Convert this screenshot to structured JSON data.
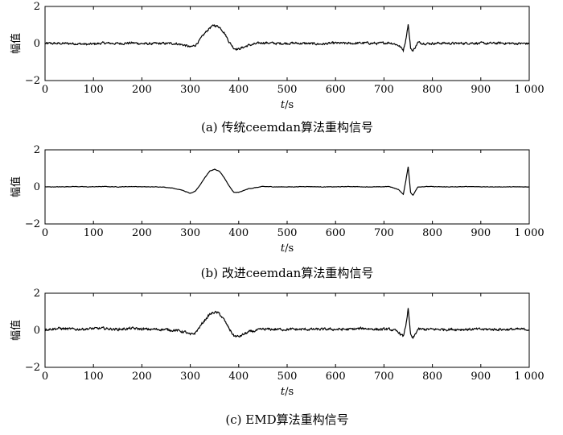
{
  "figure": {
    "x_ticks": [
      "0",
      "100",
      "200",
      "300",
      "400",
      "500",
      "600",
      "700",
      "800",
      "900",
      "1 000"
    ],
    "y_ticks": [
      "2",
      "0",
      "−2"
    ]
  },
  "chart_data": [
    {
      "type": "line",
      "caption": "(a) 传统ceemdan算法重构信号",
      "xlabel_italic": "t",
      "xlabel_unit": "/s",
      "ylabel": "幅值",
      "xlim": [
        0,
        1000
      ],
      "ylim": [
        -2,
        2
      ],
      "grid": false,
      "noise_level": 0.06,
      "series": [
        {
          "x": [
            0,
            30,
            60,
            90,
            120,
            150,
            180,
            210,
            240,
            270,
            290,
            300,
            310,
            320,
            330,
            340,
            350,
            360,
            370,
            380,
            390,
            400,
            420,
            450,
            480,
            510,
            540,
            570,
            600,
            630,
            660,
            690,
            710,
            720,
            730,
            740,
            745,
            750,
            755,
            760,
            770,
            790,
            820,
            850,
            880,
            910,
            940,
            970,
            1000
          ],
          "y": [
            0,
            0,
            0,
            -0.05,
            0.02,
            0,
            0.03,
            -0.02,
            0,
            0,
            -0.1,
            -0.2,
            -0.1,
            0.2,
            0.55,
            0.85,
            0.98,
            0.9,
            0.6,
            0.1,
            -0.25,
            -0.3,
            -0.1,
            0.05,
            0,
            0.02,
            0,
            -0.03,
            0.02,
            0,
            0.03,
            0,
            0.05,
            0,
            -0.1,
            -0.35,
            0.2,
            1.05,
            -0.25,
            -0.4,
            0.05,
            0,
            0.02,
            0,
            0.03,
            0,
            0.02,
            0,
            0
          ]
        }
      ]
    },
    {
      "type": "line",
      "caption": "(b) 改进ceemdan算法重构信号",
      "xlabel_italic": "t",
      "xlabel_unit": "/s",
      "ylabel": "幅值",
      "xlim": [
        0,
        1000
      ],
      "ylim": [
        -2,
        2
      ],
      "grid": false,
      "noise_level": 0.012,
      "series": [
        {
          "x": [
            0,
            30,
            60,
            90,
            120,
            150,
            180,
            210,
            240,
            260,
            280,
            300,
            310,
            320,
            330,
            340,
            350,
            360,
            370,
            380,
            390,
            400,
            420,
            450,
            480,
            510,
            540,
            570,
            600,
            630,
            660,
            690,
            710,
            720,
            730,
            740,
            745,
            750,
            755,
            760,
            770,
            790,
            820,
            850,
            880,
            910,
            940,
            970,
            1000
          ],
          "y": [
            0,
            0,
            0.02,
            0,
            0.02,
            0,
            0.02,
            0,
            0,
            -0.05,
            -0.15,
            -0.35,
            -0.25,
            0.1,
            0.5,
            0.85,
            0.95,
            0.85,
            0.5,
            0.05,
            -0.3,
            -0.3,
            -0.1,
            0.02,
            0,
            0,
            0.02,
            0,
            0,
            0.02,
            0,
            0,
            0.02,
            -0.05,
            -0.15,
            -0.4,
            0.3,
            1.1,
            -0.3,
            -0.45,
            0,
            0.02,
            0,
            0,
            0.02,
            0,
            0,
            0,
            0
          ]
        }
      ]
    },
    {
      "type": "line",
      "caption": "(c) EMD算法重构信号",
      "xlabel_italic": "t",
      "xlabel_unit": "/s",
      "ylabel": "幅值",
      "xlim": [
        0,
        1000
      ],
      "ylim": [
        -2,
        2
      ],
      "grid": false,
      "noise_level": 0.065,
      "series": [
        {
          "x": [
            0,
            30,
            60,
            90,
            120,
            150,
            180,
            210,
            240,
            270,
            290,
            300,
            310,
            320,
            330,
            340,
            350,
            360,
            370,
            380,
            390,
            400,
            420,
            450,
            480,
            510,
            540,
            570,
            600,
            630,
            660,
            690,
            710,
            720,
            730,
            740,
            745,
            750,
            755,
            760,
            770,
            790,
            820,
            850,
            880,
            910,
            940,
            970,
            1000
          ],
          "y": [
            0.05,
            0.1,
            0.05,
            0.08,
            0.1,
            0.05,
            0.1,
            0.05,
            0.05,
            0,
            -0.1,
            -0.25,
            -0.15,
            0.2,
            0.55,
            0.85,
            0.98,
            0.9,
            0.55,
            0.1,
            -0.3,
            -0.35,
            -0.1,
            0.05,
            0.05,
            0.05,
            0.05,
            0.05,
            0.05,
            0.05,
            0.1,
            0.05,
            0.05,
            0,
            -0.1,
            -0.35,
            0.25,
            1.15,
            -0.25,
            -0.45,
            0.05,
            0.05,
            0.05,
            0.05,
            0.05,
            0.05,
            0.05,
            0.05,
            0.05
          ]
        }
      ]
    }
  ]
}
